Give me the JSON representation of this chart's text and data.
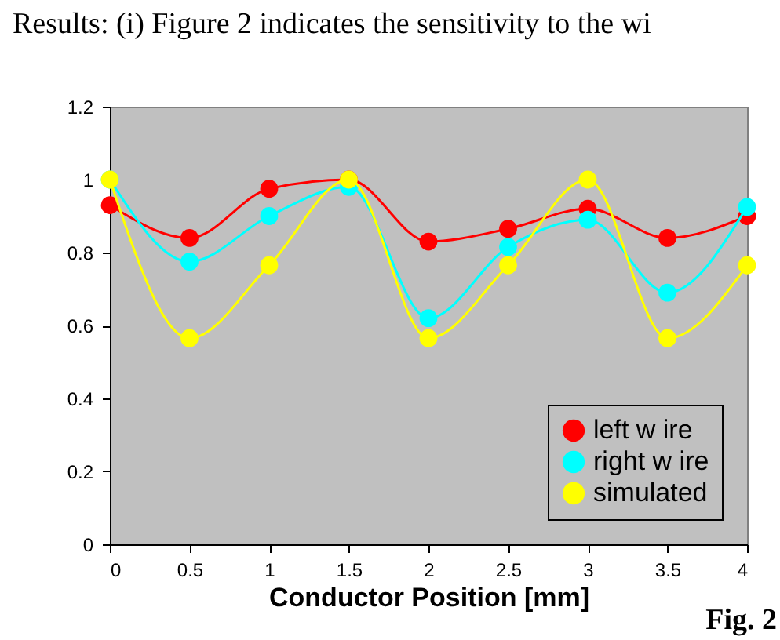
{
  "chart_data": {
    "type": "line",
    "xlabel": "Conductor Position [mm]",
    "x": [
      0,
      0.5,
      1,
      1.5,
      2,
      2.5,
      3,
      3.5,
      4
    ],
    "series": [
      {
        "name": "left w ire",
        "color": "#ff0000",
        "values": [
          0.93,
          0.84,
          0.975,
          1.0,
          0.83,
          0.865,
          0.92,
          0.84,
          0.9
        ]
      },
      {
        "name": "right w ire",
        "color": "#00ffff",
        "values": [
          1.0,
          0.775,
          0.9,
          0.98,
          0.62,
          0.815,
          0.89,
          0.69,
          0.925
        ]
      },
      {
        "name": "simulated",
        "color": "#ffff00",
        "values": [
          1.0,
          0.565,
          0.765,
          1.0,
          0.565,
          0.765,
          1.0,
          0.565,
          0.765
        ]
      }
    ],
    "xlim": [
      0,
      4
    ],
    "xticks": [
      0,
      0.5,
      1,
      1.5,
      2,
      2.5,
      3,
      3.5,
      4
    ],
    "ylim": [
      0,
      1.2
    ],
    "yticks": [
      0,
      0.2,
      0.4,
      0.6,
      0.8,
      1,
      1.2
    ],
    "grid": false,
    "legend": "bottom right",
    "marker": "circle",
    "line_style": "solid",
    "annotations": [
      "Results: (i) Figure 2 indicates the sensitivity to the wi",
      "Fig. 2"
    ]
  }
}
